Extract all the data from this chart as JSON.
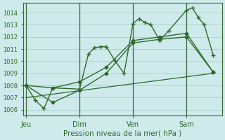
{
  "background_color": "#ceeaea",
  "grid_color": "#aacece",
  "line_color": "#2d6a2d",
  "title": "Pression niveau de la mer( hPa )",
  "ylim": [
    1005.5,
    1014.8
  ],
  "yticks": [
    1006,
    1007,
    1008,
    1009,
    1010,
    1011,
    1012,
    1013,
    1014
  ],
  "xtick_labels": [
    "Jeu",
    "Dim",
    "Ven",
    "Sam"
  ],
  "xtick_positions": [
    0,
    36,
    72,
    108
  ],
  "xlim": [
    -2,
    132
  ],
  "vline_positions": [
    0,
    36,
    72,
    108
  ],
  "series1_x": [
    0,
    6,
    12,
    18,
    36,
    42,
    46,
    50,
    54,
    60,
    66,
    72,
    76,
    80,
    84,
    90,
    96,
    108,
    112,
    116,
    120,
    126
  ],
  "series1_y": [
    1008.0,
    1006.8,
    1006.1,
    1007.8,
    1007.7,
    1010.6,
    1011.1,
    1011.2,
    1011.2,
    1010.0,
    1009.0,
    1013.1,
    1013.5,
    1013.2,
    1013.0,
    1011.7,
    1012.5,
    1014.2,
    1014.4,
    1013.6,
    1013.0,
    1010.5
  ],
  "series2_x": [
    0,
    18,
    36,
    54,
    72,
    90,
    108,
    126
  ],
  "series2_y": [
    1008.0,
    1007.8,
    1008.3,
    1009.5,
    1011.7,
    1012.0,
    1012.3,
    1009.1
  ],
  "series3_x": [
    0,
    18,
    36,
    54,
    72,
    90,
    108,
    126
  ],
  "series3_y": [
    1008.0,
    1006.6,
    1007.6,
    1009.0,
    1011.5,
    1011.8,
    1012.0,
    1009.1
  ],
  "series4_x": [
    0,
    126
  ],
  "series4_y": [
    1007.0,
    1009.0
  ],
  "marker_size": 2.5
}
